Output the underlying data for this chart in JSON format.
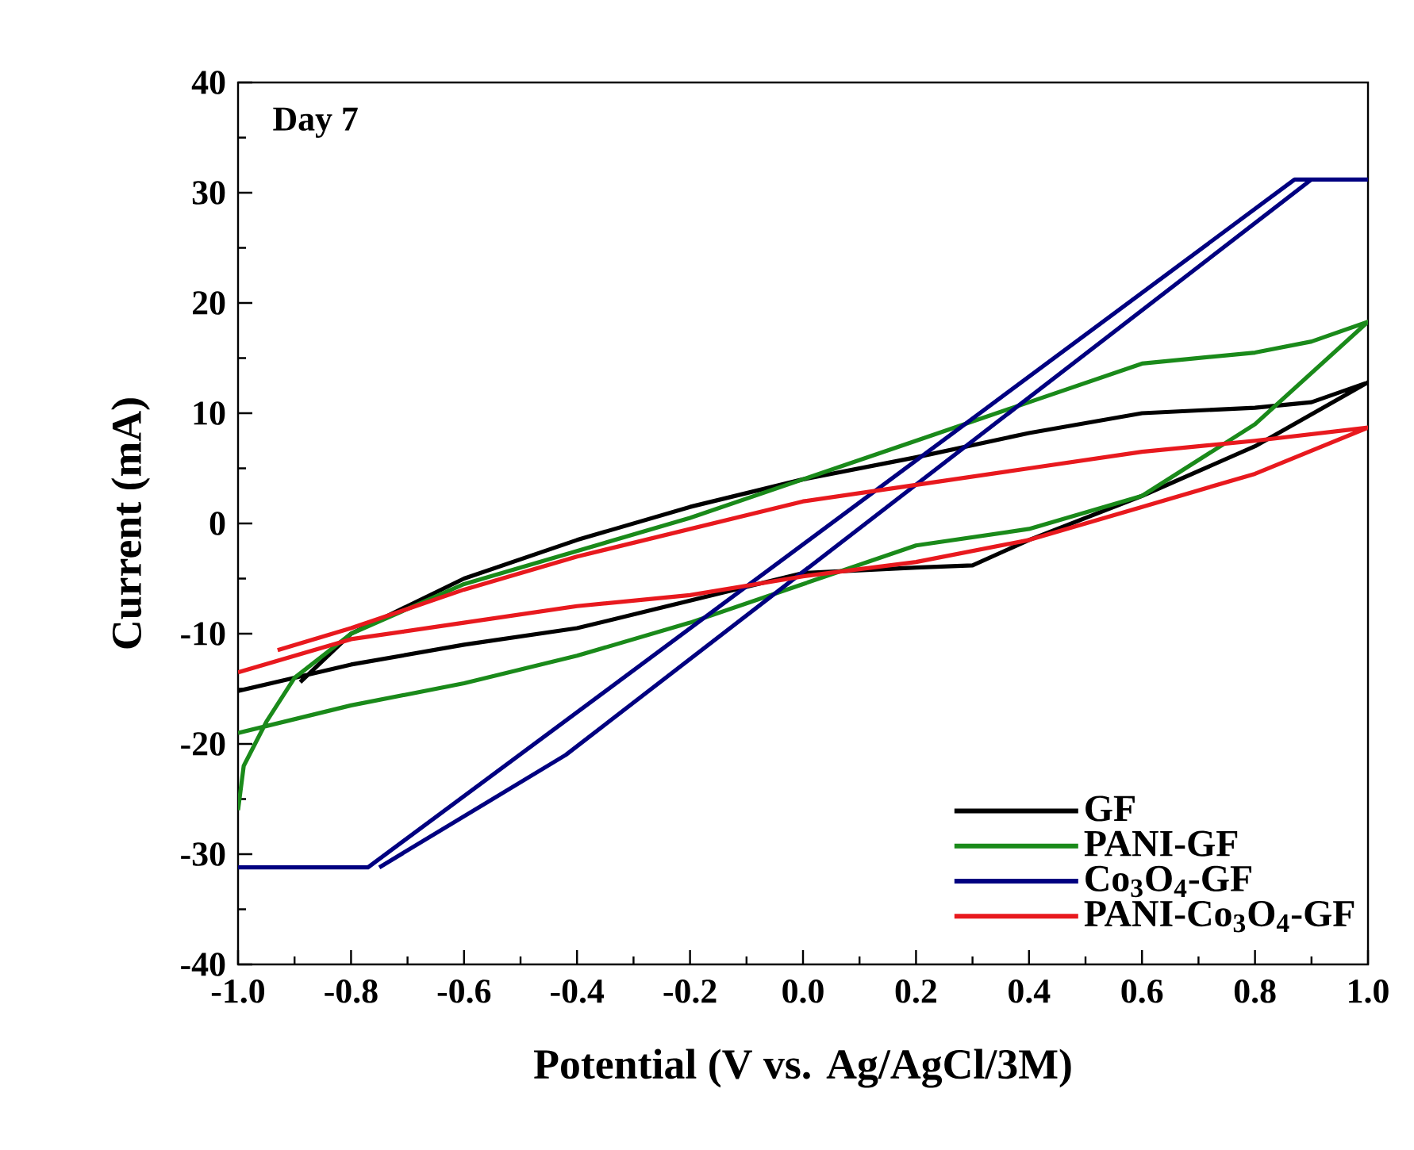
{
  "chart_data": {
    "type": "line",
    "xlabel": "Potential (V vs. Ag/AgCl/3M)",
    "ylabel": "Current (mA)",
    "annotations": [
      "Day 7"
    ],
    "xlim": [
      -1.0,
      1.0
    ],
    "ylim": [
      -40,
      40
    ],
    "xticks": [
      {
        "value": -1.0,
        "label": "-1.0"
      },
      {
        "value": -0.8,
        "label": "-0.8"
      },
      {
        "value": -0.6,
        "label": "-0.6"
      },
      {
        "value": -0.4,
        "label": "-0.4"
      },
      {
        "value": -0.2,
        "label": "-0.2"
      },
      {
        "value": 0.0,
        "label": "0.0"
      },
      {
        "value": 0.2,
        "label": "0.2"
      },
      {
        "value": 0.4,
        "label": "0.4"
      },
      {
        "value": 0.6,
        "label": "0.6"
      },
      {
        "value": 0.8,
        "label": "0.8"
      },
      {
        "value": 1.0,
        "label": "1.0"
      }
    ],
    "yticks": [
      -40,
      -30,
      -20,
      -10,
      0,
      10,
      20,
      30,
      40
    ],
    "legend": "bottom right",
    "series": [
      {
        "name": "GF",
        "color": "#000000",
        "x": [
          -0.89,
          -0.8,
          -0.6,
          -0.4,
          -0.2,
          0,
          0.2,
          0.4,
          0.6,
          0.8,
          0.9,
          1.0,
          0.8,
          0.6,
          0.4,
          0.3,
          0.2,
          0,
          -0.4,
          -0.6,
          -0.8,
          -1.0
        ],
        "values": [
          -14.4,
          -10,
          -5,
          -1.5,
          1.5,
          4,
          6,
          8.2,
          10,
          10.5,
          11,
          12.8,
          7,
          2.5,
          -1.5,
          -3.8,
          -4,
          -4.5,
          -9.5,
          -11,
          -12.8,
          -15.2
        ]
      },
      {
        "name": "PANI-GF",
        "color": "#1a8a1a",
        "x": [
          -1.0,
          -0.99,
          -0.95,
          -0.9,
          -0.8,
          -0.6,
          -0.4,
          -0.2,
          0,
          0.2,
          0.4,
          0.6,
          0.8,
          0.9,
          1.0,
          0.8,
          0.6,
          0.4,
          0.2,
          0,
          -0.2,
          -0.4,
          -0.6,
          -0.8,
          -1.0
        ],
        "values": [
          -26,
          -22,
          -18,
          -14,
          -10,
          -5.5,
          -2.5,
          0.5,
          4,
          7.5,
          11,
          14.5,
          15.5,
          16.5,
          18.3,
          9,
          2.5,
          -0.5,
          -2,
          -5.5,
          -9,
          -12,
          -14.5,
          -16.5,
          -19
        ]
      },
      {
        "name": "Co$_{3}$O$_{4}$-GF",
        "color": "#000080",
        "x": [
          -1.0,
          -0.77,
          0.87,
          1.0,
          0.9,
          -0.42,
          -0.75
        ],
        "values": [
          -31.2,
          -31.2,
          31.2,
          31.2,
          31.2,
          -21,
          -31.2
        ]
      },
      {
        "name": "PANI-Co$_{3}$O$_{4}$-GF",
        "color": "#e8191e",
        "x": [
          -0.93,
          -0.8,
          -0.6,
          -0.4,
          0,
          0.2,
          0.4,
          0.6,
          0.8,
          1.0,
          0.8,
          0.6,
          0.4,
          0.2,
          0,
          -0.2,
          -0.4,
          -0.6,
          -0.8,
          -1.0
        ],
        "values": [
          -11.5,
          -9.5,
          -6,
          -3,
          2,
          3.5,
          5,
          6.5,
          7.5,
          8.7,
          4.5,
          1.5,
          -1.5,
          -3.5,
          -4.8,
          -6.5,
          -7.5,
          -9,
          -10.5,
          -13.5
        ]
      }
    ]
  }
}
